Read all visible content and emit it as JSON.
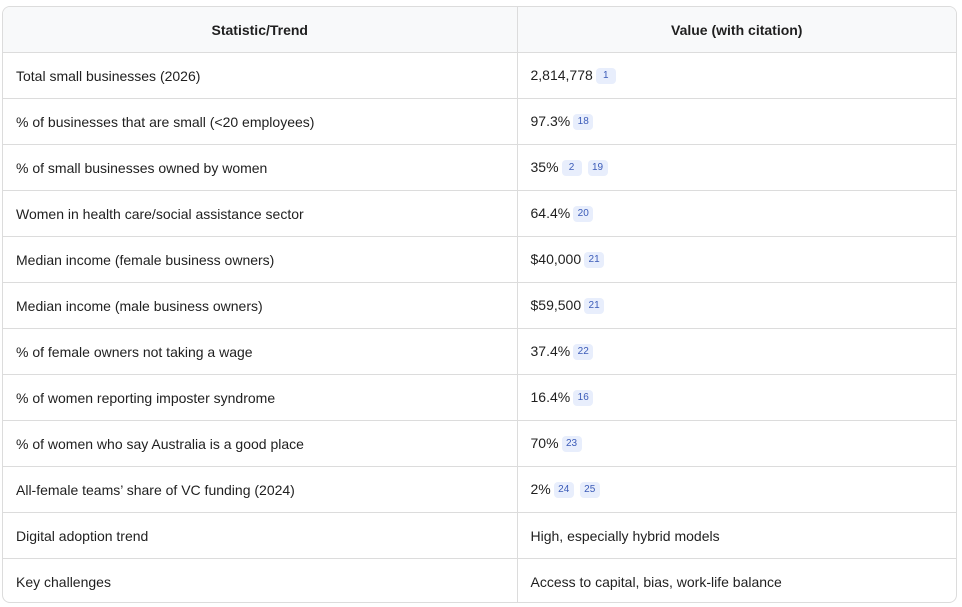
{
  "table": {
    "headers": [
      "Statistic/Trend",
      "Value (with citation)"
    ],
    "rows": [
      {
        "statistic": "Total small businesses (2026)",
        "value": "2,814,778",
        "citations": [
          "1"
        ]
      },
      {
        "statistic": "% of businesses that are small (<20 employees)",
        "value": "97.3%",
        "citations": [
          "18"
        ]
      },
      {
        "statistic": "% of small businesses owned by women",
        "value": "35%",
        "citations": [
          "2",
          "19"
        ]
      },
      {
        "statistic": "Women in health care/social assistance sector",
        "value": "64.4%",
        "citations": [
          "20"
        ]
      },
      {
        "statistic": "Median income (female business owners)",
        "value": "$40,000",
        "citations": [
          "21"
        ]
      },
      {
        "statistic": "Median income (male business owners)",
        "value": "$59,500",
        "citations": [
          "21"
        ]
      },
      {
        "statistic": "% of female owners not taking a wage",
        "value": "37.4%",
        "citations": [
          "22"
        ]
      },
      {
        "statistic": "% of women reporting imposter syndrome",
        "value": "16.4%",
        "citations": [
          "16"
        ]
      },
      {
        "statistic": "% of women who say Australia is a good place",
        "value": "70%",
        "citations": [
          "23"
        ]
      },
      {
        "statistic": "All-female teams’ share of VC funding (2024)",
        "value": "2%",
        "citations": [
          "24",
          "25"
        ]
      },
      {
        "statistic": "Digital adoption trend",
        "value": "High, especially hybrid models",
        "citations": []
      },
      {
        "statistic": "Key challenges",
        "value": "Access to capital, bias, work-life balance",
        "citations": []
      }
    ]
  }
}
